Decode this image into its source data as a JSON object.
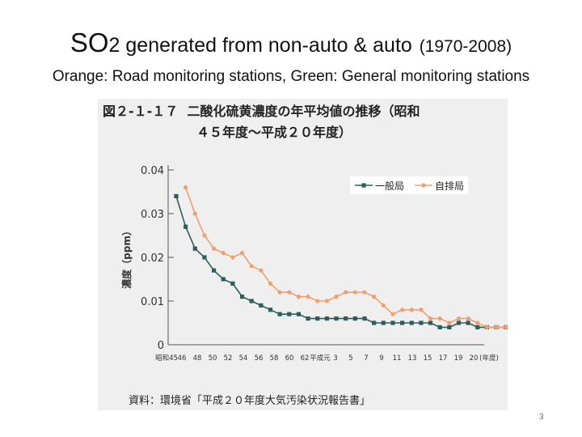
{
  "slide": {
    "title_prefix": "SO",
    "title_sub": "2",
    "title_main": " generated from non-auto & auto",
    "title_years": "(1970-2008)",
    "subtitle": "Orange: Road monitoring stations, Green: General monitoring stations",
    "page_number": "3"
  },
  "figure": {
    "label": "図２-１-１７",
    "title_line1": "二酸化硫黄濃度の年平均値の推移（昭和",
    "title_line2": "４５年度～平成２０年度）",
    "source": "資料：環境省「平成２０年度大気汚染状況報告書」"
  },
  "colors": {
    "general": "#2e5d5d",
    "road": "#f0a070"
  },
  "chart_data": {
    "type": "line",
    "title": "二酸化硫黄濃度の年平均値の推移（昭和４５年度～平成２０年度）",
    "ylabel": "濃度（ppm）",
    "xlabel": "年度",
    "ylim": [
      0,
      0.04
    ],
    "y_ticks": [
      "0.04",
      "0.03",
      "0.02",
      "0.01",
      "0"
    ],
    "x_tick_labels": [
      "昭和45",
      "46",
      "48",
      "50",
      "52",
      "54",
      "56",
      "58",
      "60",
      "62",
      "平成元",
      "3",
      "5",
      "7",
      "9",
      "11",
      "13",
      "15",
      "17",
      "19",
      "20",
      "(年度)"
    ],
    "legend": [
      "一般局",
      "自排局"
    ],
    "legend_position": "top-right",
    "series": [
      {
        "name": "一般局",
        "start_year": 1970,
        "values": [
          0.034,
          0.027,
          0.022,
          0.02,
          0.017,
          0.015,
          0.014,
          0.011,
          0.01,
          0.009,
          0.008,
          0.007,
          0.007,
          0.007,
          0.006,
          0.006,
          0.006,
          0.006,
          0.006,
          0.006,
          0.006,
          0.005,
          0.005,
          0.005,
          0.005,
          0.005,
          0.005,
          0.005,
          0.004,
          0.004,
          0.005,
          0.005,
          0.004,
          0.004,
          0.004,
          0.004,
          0.004,
          0.003,
          0.003
        ]
      },
      {
        "name": "自排局",
        "start_year": 1971,
        "values": [
          0.036,
          0.03,
          0.025,
          0.022,
          0.021,
          0.02,
          0.021,
          0.018,
          0.017,
          0.014,
          0.012,
          0.012,
          0.011,
          0.011,
          0.01,
          0.01,
          0.011,
          0.012,
          0.012,
          0.012,
          0.011,
          0.009,
          0.007,
          0.008,
          0.008,
          0.008,
          0.006,
          0.006,
          0.005,
          0.006,
          0.006,
          0.005,
          0.004,
          0.004,
          0.004,
          0.004,
          0.003,
          0.003
        ]
      }
    ]
  }
}
